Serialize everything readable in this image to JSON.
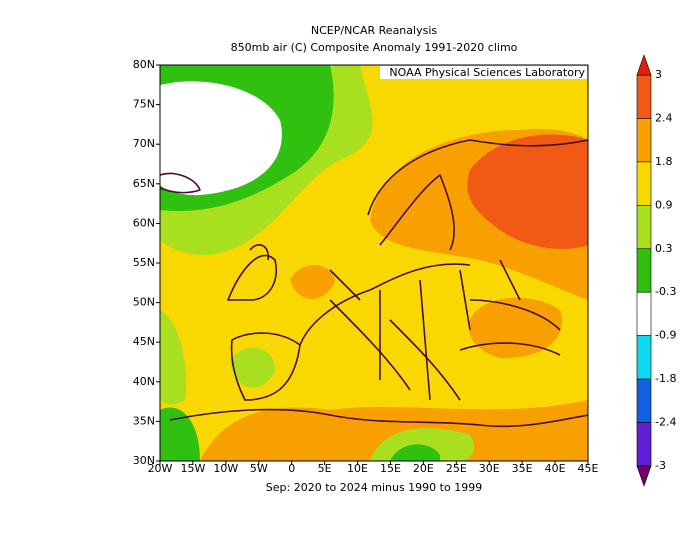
{
  "header": {
    "title": "NCEP/NCAR Reanalysis",
    "subtitle": "850mb air (C) Composite Anomaly 1991-2020 climo"
  },
  "map": {
    "credit": "NOAA Physical Sciences Laboratory",
    "lat_labels": [
      "30N",
      "35N",
      "40N",
      "45N",
      "50N",
      "55N",
      "60N",
      "65N",
      "70N",
      "75N",
      "80N"
    ],
    "lon_labels": [
      "20W",
      "15W",
      "10W",
      "5W",
      "0",
      "5E",
      "10E",
      "15E",
      "20E",
      "25E",
      "30E",
      "35E",
      "40E",
      "45E"
    ],
    "caption": "Sep: 2020 to 2024 minus 1990 to 1999"
  },
  "colorbar": {
    "levels": [
      3,
      2.4,
      1.8,
      0.9,
      0.3,
      -0.3,
      -0.9,
      -1.8,
      -2.4,
      -3
    ],
    "colors": [
      "#e0200a",
      "#f05a14",
      "#f8a000",
      "#f8d800",
      "#a8e020",
      "#30c010",
      "#ffffff",
      "#10d8f0",
      "#1060e0",
      "#6020d8",
      "#c010c0",
      "#700070"
    ]
  }
}
